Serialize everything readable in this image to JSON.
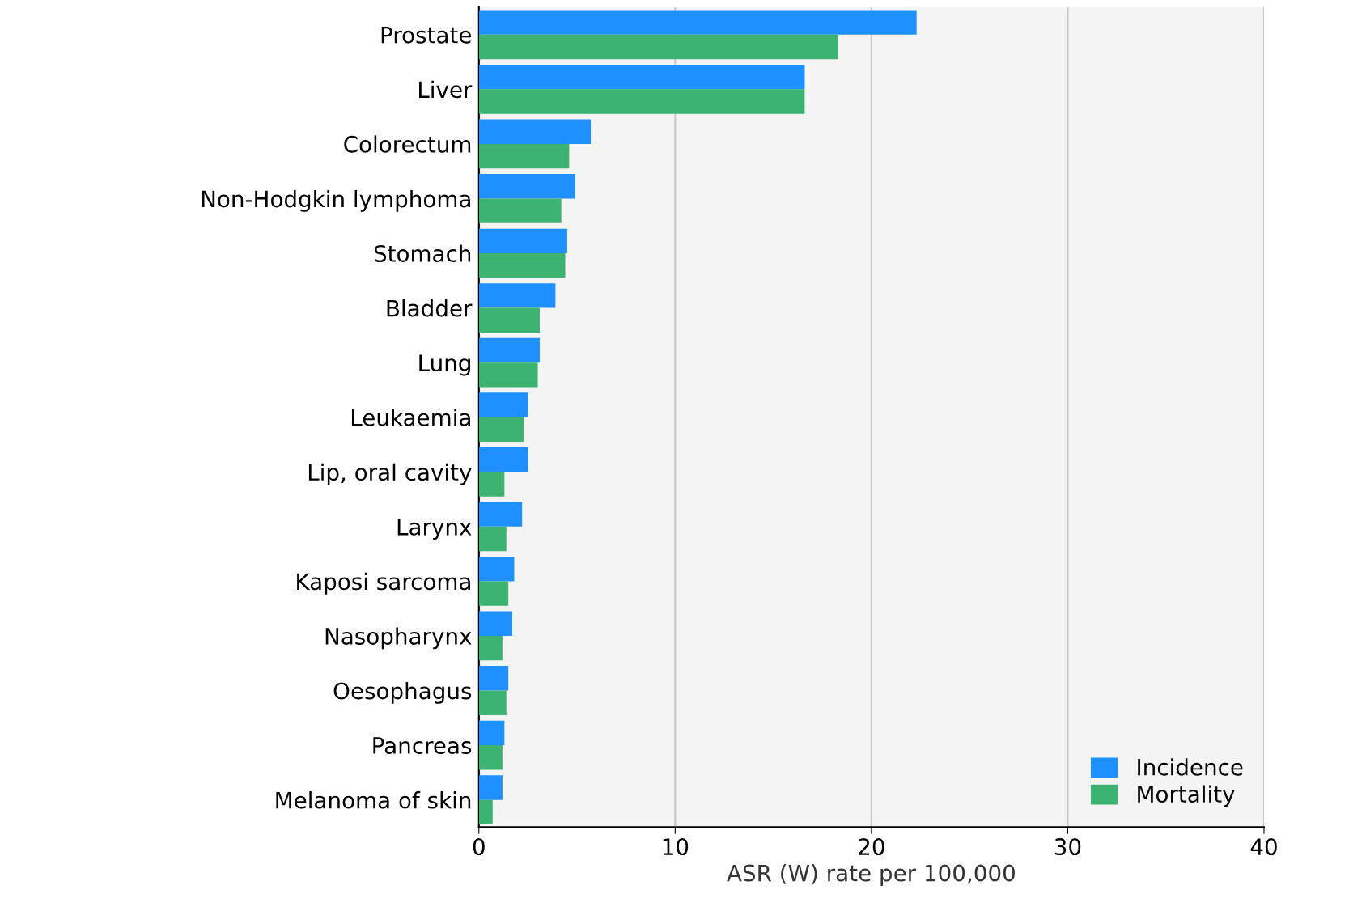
{
  "chart_data": {
    "type": "bar",
    "orientation": "horizontal",
    "categories": [
      "Prostate",
      "Liver",
      "Colorectum",
      "Non-Hodgkin lymphoma",
      "Stomach",
      "Bladder",
      "Lung",
      "Leukaemia",
      "Lip, oral cavity",
      "Larynx",
      "Kaposi sarcoma",
      "Nasopharynx",
      "Oesophagus",
      "Pancreas",
      "Melanoma of skin"
    ],
    "series": [
      {
        "name": "Incidence",
        "color": "#1e90ff",
        "values": [
          22.3,
          16.6,
          5.7,
          4.9,
          4.5,
          3.9,
          3.1,
          2.5,
          2.5,
          2.2,
          1.8,
          1.7,
          1.5,
          1.3,
          1.2
        ]
      },
      {
        "name": "Mortality",
        "color": "#3cb371",
        "values": [
          18.3,
          16.6,
          4.6,
          4.2,
          4.4,
          3.1,
          3.0,
          2.3,
          1.3,
          1.4,
          1.5,
          1.2,
          1.4,
          1.2,
          0.7
        ]
      }
    ],
    "xlabel": "ASR (W) rate per 100,000",
    "xlim": [
      0,
      40
    ],
    "xticks": [
      0,
      10,
      20,
      30,
      40
    ],
    "grid": "x",
    "legend": "bottom right"
  }
}
